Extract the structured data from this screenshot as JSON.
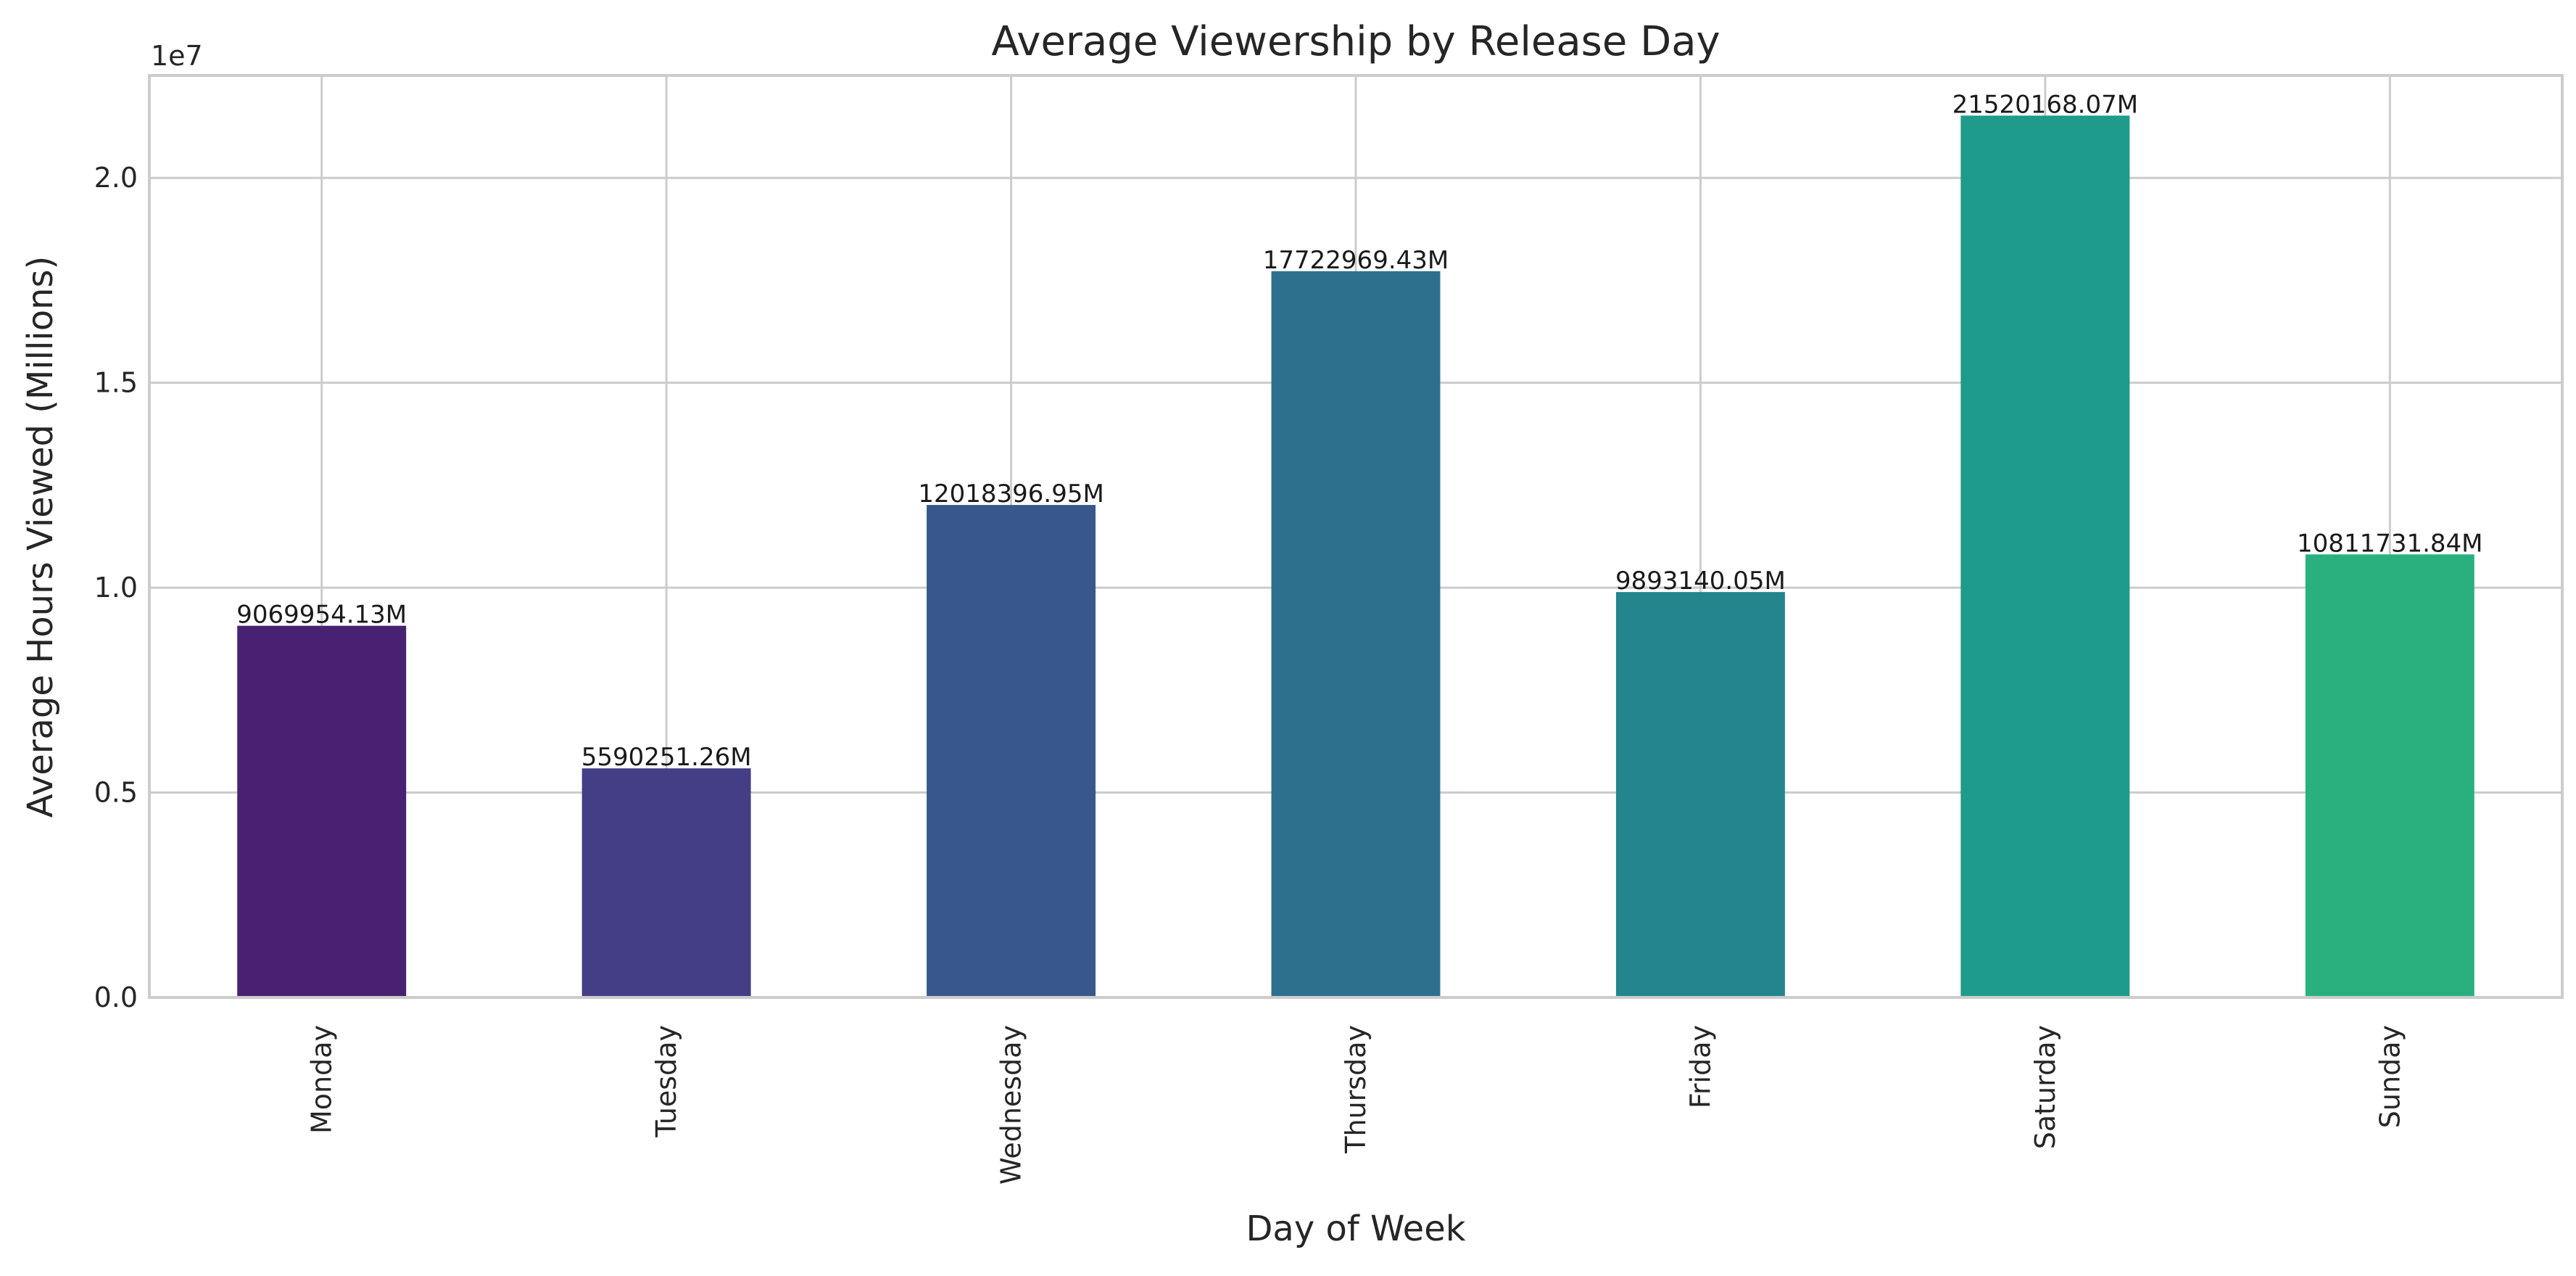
{
  "chart_data": {
    "type": "bar",
    "title": "Average Viewership by Release Day",
    "xlabel": "Day of Week",
    "ylabel": "Average Hours Viewed (Millions)",
    "y_offset_label": "1e7",
    "categories": [
      "Monday",
      "Tuesday",
      "Wednesday",
      "Thursday",
      "Friday",
      "Saturday",
      "Sunday"
    ],
    "values": [
      9069954.13,
      5590251.26,
      12018396.95,
      17722969.43,
      9893140.05,
      21520168.07,
      10811731.84
    ],
    "value_labels": [
      "9069954.13M",
      "5590251.26M",
      "12018396.95M",
      "17722969.43M",
      "9893140.05M",
      "21520168.07M",
      "10811731.84M"
    ],
    "colors": [
      "#482173",
      "#433e85",
      "#38588c",
      "#2d708e",
      "#25858e",
      "#1e9b8a",
      "#2ab07f"
    ],
    "ylim": [
      0,
      22500000
    ],
    "yticks": [
      0,
      5000000,
      10000000,
      15000000,
      20000000
    ],
    "ytick_labels": [
      "0.0",
      "0.5",
      "1.0",
      "1.5",
      "2.0"
    ],
    "grid": true,
    "x_tick_rotation": 90
  }
}
